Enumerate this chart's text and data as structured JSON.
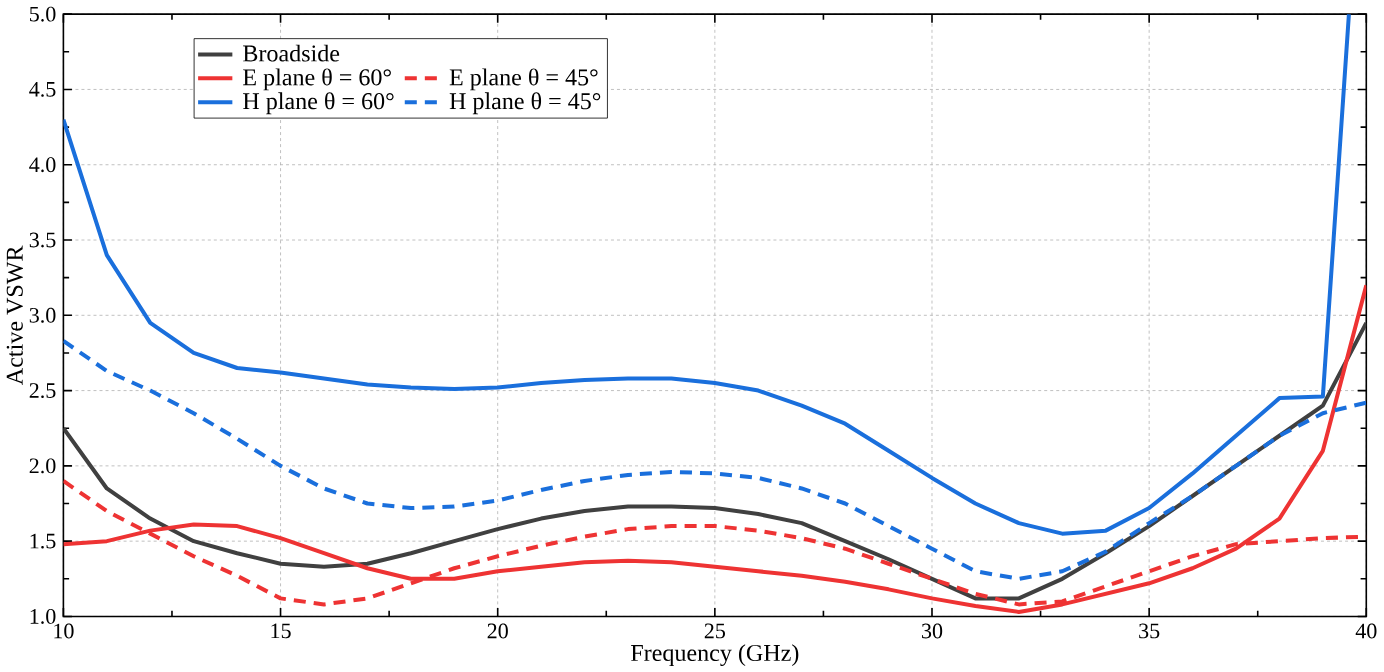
{
  "chart_data": {
    "type": "line",
    "xlabel": "Frequency (GHz)",
    "ylabel": "Active VSWR",
    "x": [
      10,
      11,
      12,
      13,
      14,
      15,
      16,
      17,
      18,
      19,
      20,
      21,
      22,
      23,
      24,
      25,
      26,
      27,
      28,
      29,
      30,
      31,
      32,
      33,
      34,
      35,
      36,
      37,
      38,
      39,
      40
    ],
    "series": [
      {
        "name": "Broadside",
        "color": "#404040",
        "line_style": "solid",
        "values": [
          2.25,
          1.85,
          1.65,
          1.5,
          1.42,
          1.35,
          1.33,
          1.35,
          1.42,
          1.5,
          1.58,
          1.65,
          1.7,
          1.73,
          1.73,
          1.72,
          1.68,
          1.62,
          1.5,
          1.38,
          1.25,
          1.12,
          1.12,
          1.25,
          1.42,
          1.6,
          1.8,
          2.0,
          2.2,
          2.4,
          2.95
        ]
      },
      {
        "name": "E plane θ = 60°",
        "color": "#ee3333",
        "line_style": "solid",
        "values": [
          1.48,
          1.5,
          1.57,
          1.61,
          1.6,
          1.52,
          1.42,
          1.32,
          1.25,
          1.25,
          1.3,
          1.33,
          1.36,
          1.37,
          1.36,
          1.33,
          1.3,
          1.27,
          1.23,
          1.18,
          1.12,
          1.07,
          1.03,
          1.08,
          1.15,
          1.22,
          1.32,
          1.45,
          1.65,
          2.1,
          3.2
        ]
      },
      {
        "name": "E plane θ = 45°",
        "color": "#ee3333",
        "line_style": "dashed",
        "values": [
          1.9,
          1.7,
          1.55,
          1.4,
          1.27,
          1.12,
          1.08,
          1.12,
          1.22,
          1.32,
          1.4,
          1.47,
          1.53,
          1.58,
          1.6,
          1.6,
          1.57,
          1.52,
          1.45,
          1.35,
          1.25,
          1.15,
          1.08,
          1.1,
          1.2,
          1.3,
          1.4,
          1.48,
          1.5,
          1.52,
          1.53
        ]
      },
      {
        "name": "H plane θ = 60°",
        "color": "#1a6fdc",
        "line_style": "solid",
        "x": [
          10,
          11,
          12,
          13,
          14,
          15,
          16,
          17,
          18,
          19,
          20,
          21,
          22,
          23,
          24,
          25,
          26,
          27,
          28,
          29,
          30,
          31,
          32,
          33,
          34,
          35,
          36,
          37,
          38,
          39,
          39.6
        ],
        "values": [
          4.3,
          3.4,
          2.95,
          2.75,
          2.65,
          2.62,
          2.58,
          2.54,
          2.52,
          2.51,
          2.52,
          2.55,
          2.57,
          2.58,
          2.58,
          2.55,
          2.5,
          2.4,
          2.28,
          2.1,
          1.92,
          1.75,
          1.62,
          1.55,
          1.57,
          1.72,
          1.95,
          2.2,
          2.45,
          2.46,
          5.0
        ]
      },
      {
        "name": "H plane θ = 45°",
        "color": "#1a6fdc",
        "line_style": "dashed",
        "values": [
          2.83,
          2.63,
          2.5,
          2.35,
          2.18,
          2.0,
          1.85,
          1.75,
          1.72,
          1.73,
          1.77,
          1.84,
          1.9,
          1.94,
          1.96,
          1.95,
          1.92,
          1.85,
          1.75,
          1.6,
          1.45,
          1.3,
          1.25,
          1.3,
          1.43,
          1.62,
          1.8,
          2.0,
          2.2,
          2.35,
          2.42
        ]
      }
    ],
    "xlim": [
      10,
      40
    ],
    "ylim": [
      1.0,
      5.0
    ],
    "xticks": [
      10,
      15,
      20,
      25,
      30,
      35,
      40
    ],
    "yticks": [
      {
        "value": 1.0,
        "label": "1.0"
      },
      {
        "value": 1.5,
        "label": "1.5"
      },
      {
        "value": 2.0,
        "label": "2.0"
      },
      {
        "value": 2.5,
        "label": "2.5"
      },
      {
        "value": 3.0,
        "label": "3.0"
      },
      {
        "value": 3.5,
        "label": "3.5"
      },
      {
        "value": 4.0,
        "label": "4.0"
      },
      {
        "value": 4.5,
        "label": "4.5"
      },
      {
        "value": 5.0,
        "label": "5.0"
      }
    ],
    "grid": true,
    "legend": "top left",
    "marker": "none"
  }
}
